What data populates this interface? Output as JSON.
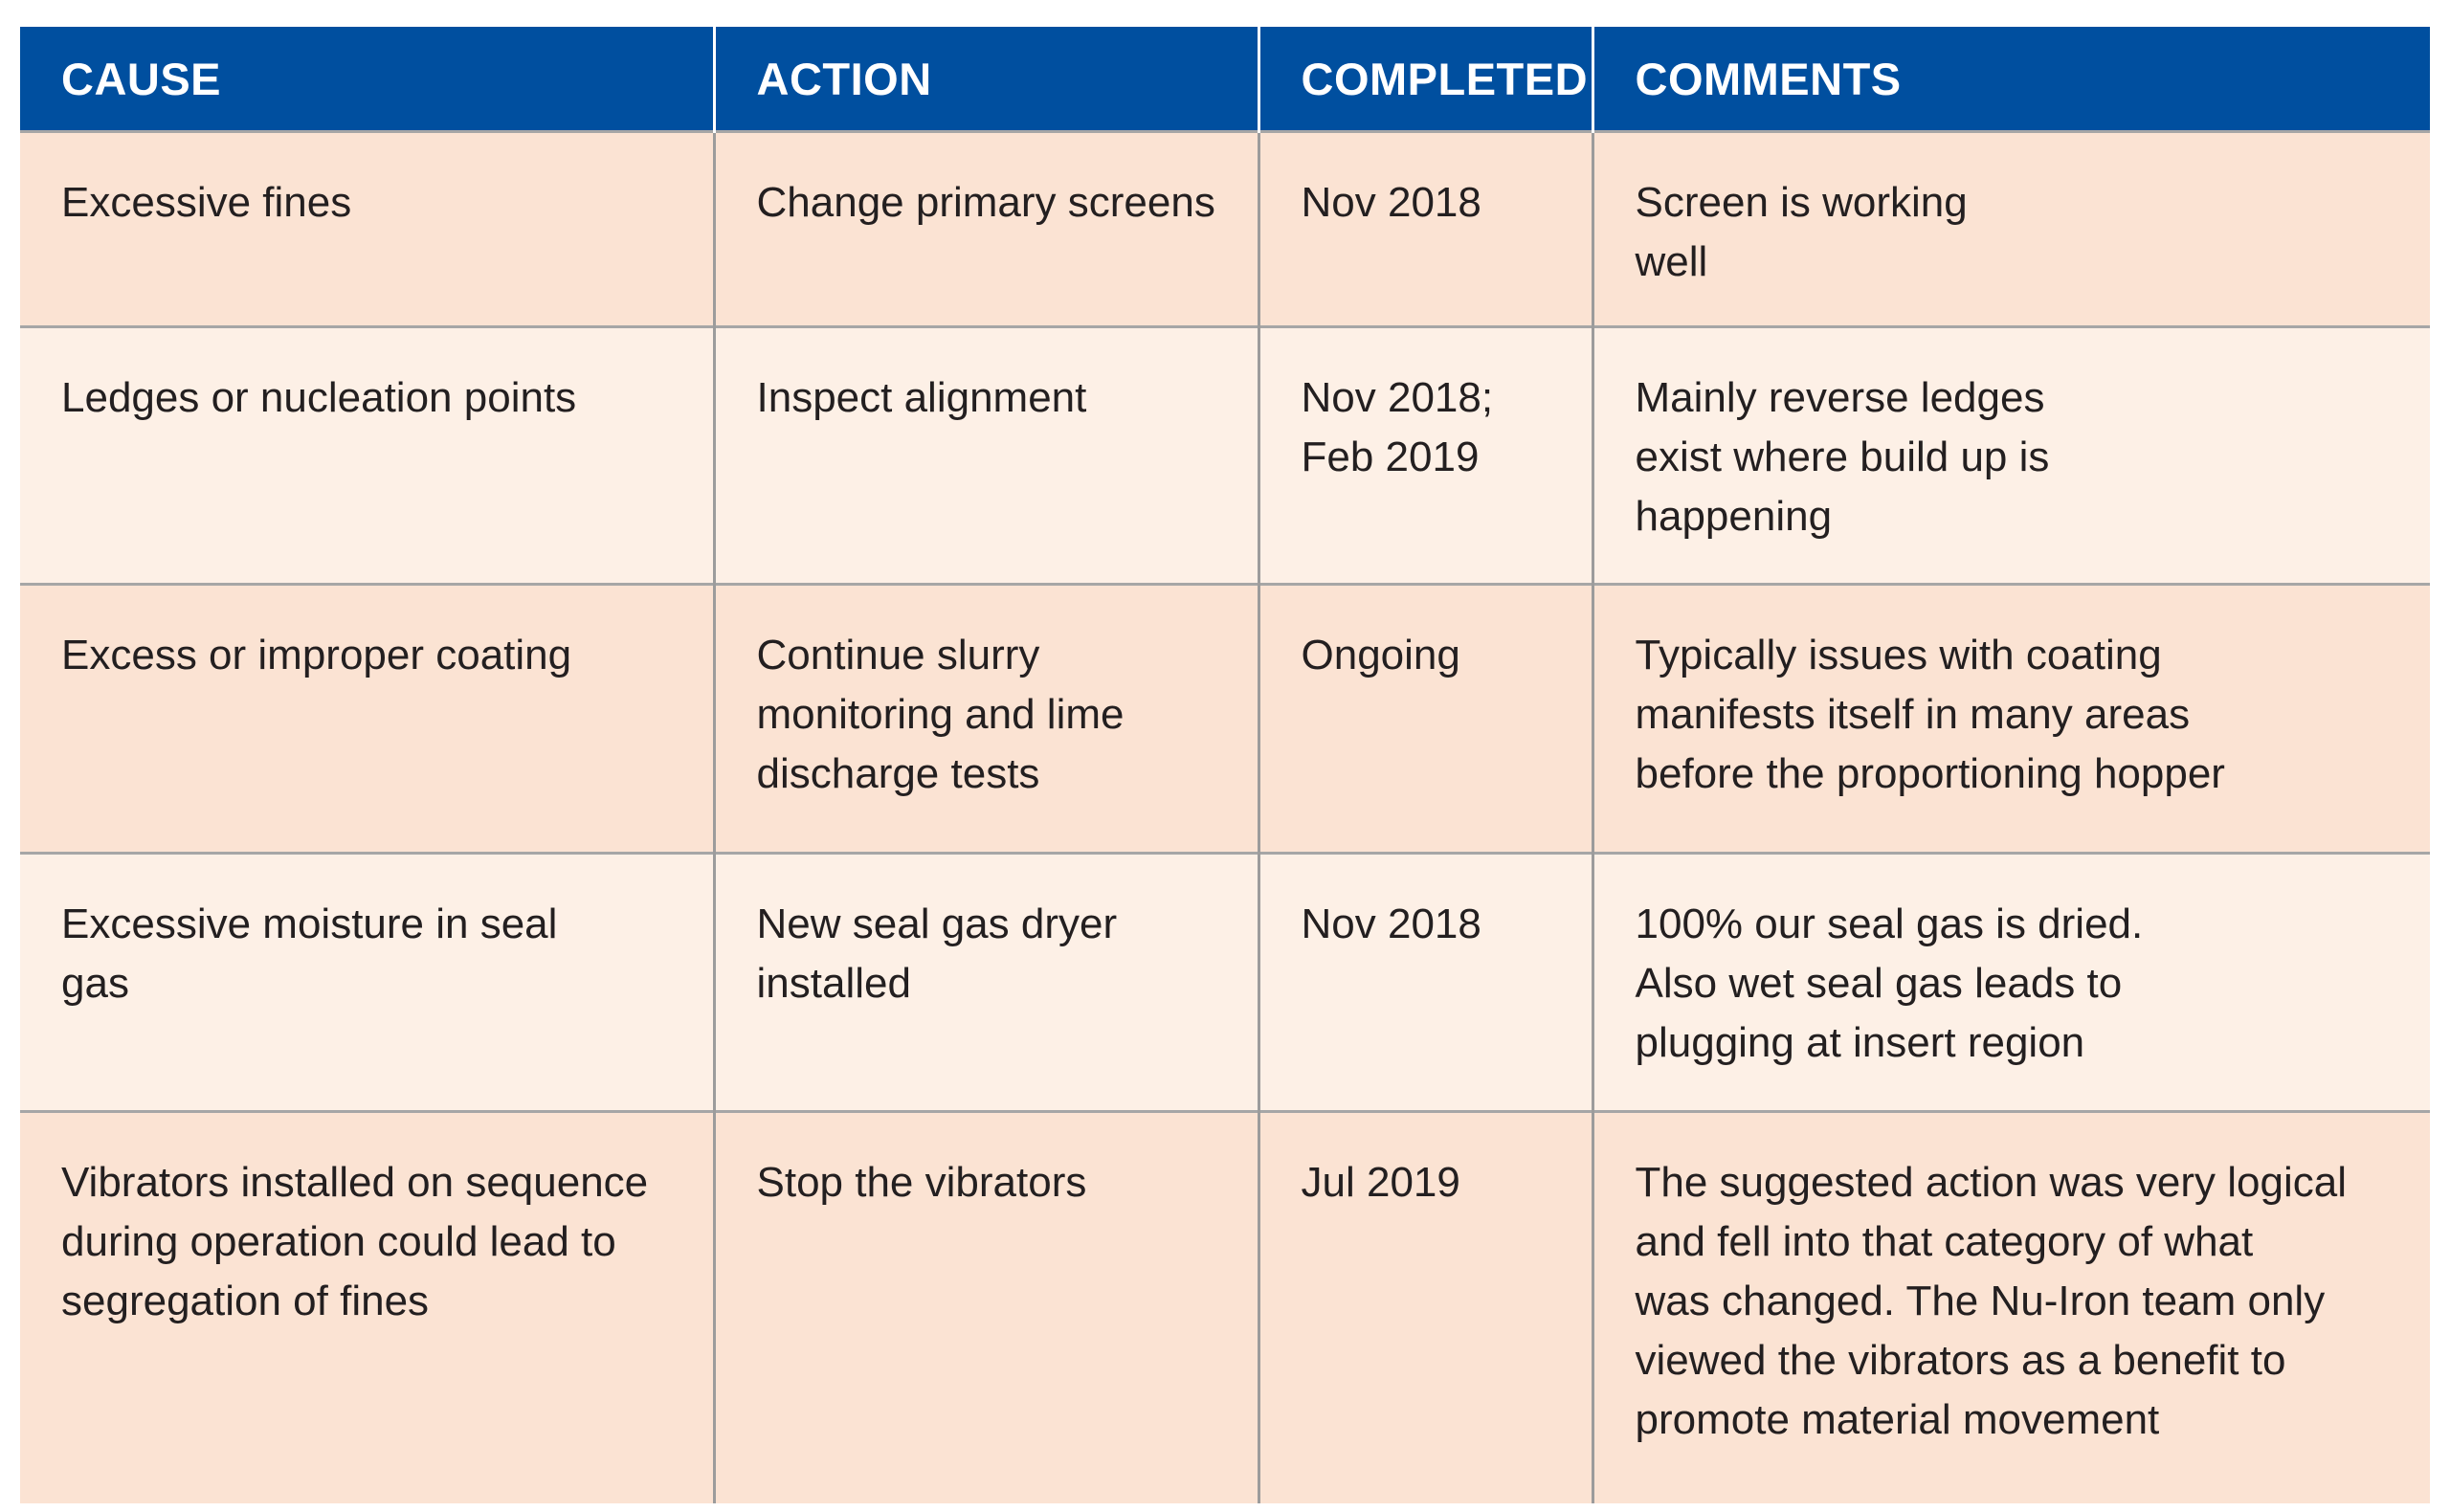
{
  "headers": {
    "cause": "CAUSE",
    "action": "ACTION",
    "completed": "COMPLETED",
    "comments": "COMMENTS"
  },
  "rows": [
    {
      "cause": "Excessive fines",
      "action": "Change primary screens",
      "completed": "Nov 2018",
      "comments": "Screen is working\nwell"
    },
    {
      "cause": "Ledges or nucleation points",
      "action": "Inspect alignment",
      "completed": "Nov 2018;\nFeb 2019",
      "comments": "Mainly reverse ledges\nexist where build up is\nhappening"
    },
    {
      "cause": "Excess or improper coating",
      "action": "Continue slurry\nmonitoring and lime\ndischarge tests",
      "completed": "Ongoing",
      "comments": "Typically issues with coating\nmanifests itself in many areas\nbefore the proportioning hopper"
    },
    {
      "cause": "Excessive moisture in seal\ngas",
      "action": "New seal gas dryer\ninstalled",
      "completed": "Nov 2018",
      "comments": "100% our seal gas is dried.\nAlso wet seal gas leads to\nplugging at insert region"
    },
    {
      "cause": "Vibrators installed on sequence\nduring operation could lead to\nsegregation of fines",
      "action": "Stop the vibrators",
      "completed": "Jul 2019",
      "comments": "The suggested action was very logical\nand fell into that category of what\nwas changed. The Nu-Iron team only\nviewed the vibrators as a benefit to\npromote material movement"
    }
  ],
  "colors": {
    "header_bg": "#004f9f",
    "row_odd_bg": "#fbe3d3",
    "row_even_bg": "#fdf0e6"
  }
}
